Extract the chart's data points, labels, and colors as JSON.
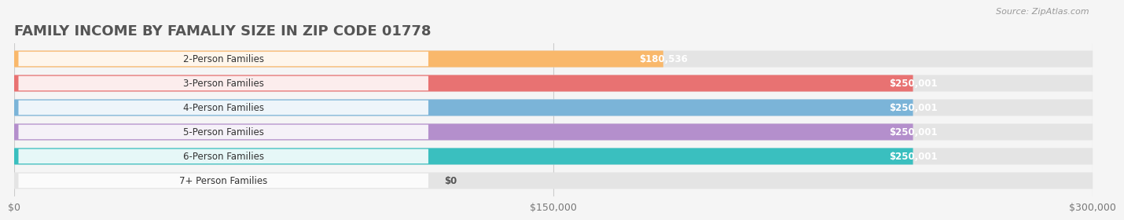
{
  "categories": [
    "2-Person Families",
    "3-Person Families",
    "4-Person Families",
    "5-Person Families",
    "6-Person Families",
    "7+ Person Families"
  ],
  "values": [
    180536,
    250001,
    250001,
    250001,
    250001,
    0
  ],
  "bar_colors": [
    "#F9B86B",
    "#E87272",
    "#7BB4D8",
    "#B48FCC",
    "#3ABFBF",
    "#C8CAEE"
  ],
  "value_labels": [
    "$180,536",
    "$250,001",
    "$250,001",
    "$250,001",
    "$250,001",
    "$0"
  ],
  "title": "FAMILY INCOME BY FAMALIY SIZE IN ZIP CODE 01778",
  "source": "Source: ZipAtlas.com",
  "xlim": [
    0,
    300000
  ],
  "xticks": [
    0,
    150000,
    300000
  ],
  "xtick_labels": [
    "$0",
    "$150,000",
    "$300,000"
  ],
  "background_color": "#f5f5f5",
  "bar_bg_color": "#e4e4e4",
  "title_color": "#555555",
  "title_fontsize": 13,
  "label_fontsize": 8.5,
  "value_fontsize": 8.5
}
